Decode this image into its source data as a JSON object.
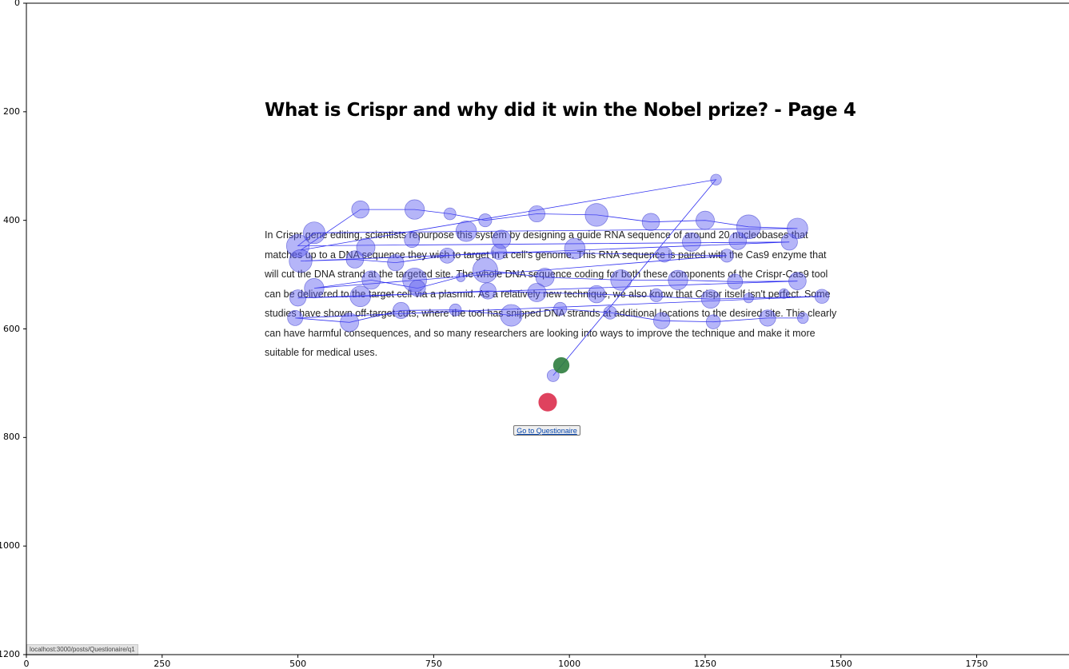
{
  "plot": {
    "x_ticks": [
      0,
      250,
      500,
      750,
      1000,
      1250,
      1500,
      1750
    ],
    "y_ticks": [
      0,
      200,
      400,
      600,
      800,
      1000,
      1200
    ],
    "xlim": [
      0,
      1920
    ],
    "ylim": [
      1200,
      0
    ],
    "colors": {
      "fixation_fill": "rgba(90, 90, 240, 0.45)",
      "fixation_stroke": "#3333cc",
      "saccade_line": "#1a1aee",
      "start_marker": "#2e7d3e",
      "end_marker": "#dc2d4c"
    }
  },
  "page": {
    "title": "What is Crispr and why did it win the Nobel prize? - Page 4",
    "body": "In Crispr gene editing, scientists repurpose this system by designing a guide RNA sequence of around 20 nucleobases that matches up to a DNA sequence they wish to target in a cell's genome. This RNA sequence is paired with the Cas9 enzyme that will cut the DNA strand at the targeted site. The whole DNA sequence coding for both these components of the Crispr-Cas9 tool can be delivered to the target cell via a plasmid. As a relatively new technique, we also know that Crispr itself isn't perfect. Some studies have shown off-target cuts, where the tool has snipped DNA strands at additional locations to the desired site. This clearly can have harmful consequences, and so many researchers are looking into ways to improve the technique and make it more suitable for medical uses.",
    "button_label": "Go to Questionaire"
  },
  "status_bar": {
    "url": "localhost:3000/posts/Questionaire/q1"
  },
  "chart_data": {
    "type": "scatter",
    "title": "",
    "xlabel": "",
    "ylabel": "",
    "xlim": [
      0,
      1920
    ],
    "ylim": [
      1200,
      0
    ],
    "note_units": "screen px",
    "start_point": {
      "x": 985,
      "y": 667,
      "r": 15
    },
    "end_point": {
      "x": 960,
      "y": 735,
      "r": 17
    },
    "fixations": [
      {
        "x": 970,
        "y": 686,
        "r": 11
      },
      {
        "x": 1270,
        "y": 325,
        "r": 10
      },
      {
        "x": 615,
        "y": 380,
        "r": 16
      },
      {
        "x": 715,
        "y": 380,
        "r": 18
      },
      {
        "x": 780,
        "y": 388,
        "r": 11
      },
      {
        "x": 845,
        "y": 400,
        "r": 12
      },
      {
        "x": 940,
        "y": 388,
        "r": 15
      },
      {
        "x": 1050,
        "y": 390,
        "r": 21
      },
      {
        "x": 1150,
        "y": 403,
        "r": 16
      },
      {
        "x": 1250,
        "y": 400,
        "r": 17
      },
      {
        "x": 1330,
        "y": 412,
        "r": 22
      },
      {
        "x": 1420,
        "y": 415,
        "r": 19
      },
      {
        "x": 530,
        "y": 423,
        "r": 20
      },
      {
        "x": 810,
        "y": 420,
        "r": 19
      },
      {
        "x": 500,
        "y": 447,
        "r": 21
      },
      {
        "x": 625,
        "y": 450,
        "r": 17
      },
      {
        "x": 710,
        "y": 436,
        "r": 14
      },
      {
        "x": 875,
        "y": 435,
        "r": 17
      },
      {
        "x": 1010,
        "y": 452,
        "r": 19
      },
      {
        "x": 1225,
        "y": 440,
        "r": 17
      },
      {
        "x": 1310,
        "y": 438,
        "r": 16
      },
      {
        "x": 1405,
        "y": 440,
        "r": 15
      },
      {
        "x": 505,
        "y": 475,
        "r": 21
      },
      {
        "x": 605,
        "y": 472,
        "r": 16
      },
      {
        "x": 680,
        "y": 478,
        "r": 15
      },
      {
        "x": 775,
        "y": 465,
        "r": 14
      },
      {
        "x": 870,
        "y": 458,
        "r": 14
      },
      {
        "x": 1175,
        "y": 463,
        "r": 14
      },
      {
        "x": 1290,
        "y": 465,
        "r": 12
      },
      {
        "x": 530,
        "y": 525,
        "r": 18
      },
      {
        "x": 635,
        "y": 510,
        "r": 17
      },
      {
        "x": 715,
        "y": 510,
        "r": 22
      },
      {
        "x": 720,
        "y": 525,
        "r": 15
      },
      {
        "x": 800,
        "y": 505,
        "r": 8
      },
      {
        "x": 845,
        "y": 492,
        "r": 23
      },
      {
        "x": 955,
        "y": 505,
        "r": 17
      },
      {
        "x": 1095,
        "y": 510,
        "r": 19
      },
      {
        "x": 1200,
        "y": 510,
        "r": 18
      },
      {
        "x": 1305,
        "y": 513,
        "r": 14
      },
      {
        "x": 1420,
        "y": 512,
        "r": 16
      },
      {
        "x": 500,
        "y": 543,
        "r": 15
      },
      {
        "x": 615,
        "y": 540,
        "r": 19
      },
      {
        "x": 850,
        "y": 530,
        "r": 15
      },
      {
        "x": 940,
        "y": 533,
        "r": 17
      },
      {
        "x": 1050,
        "y": 536,
        "r": 16
      },
      {
        "x": 1160,
        "y": 538,
        "r": 12
      },
      {
        "x": 1260,
        "y": 545,
        "r": 17
      },
      {
        "x": 1330,
        "y": 543,
        "r": 9
      },
      {
        "x": 1395,
        "y": 535,
        "r": 9
      },
      {
        "x": 1465,
        "y": 540,
        "r": 13
      },
      {
        "x": 495,
        "y": 580,
        "r": 14
      },
      {
        "x": 595,
        "y": 588,
        "r": 17
      },
      {
        "x": 690,
        "y": 566,
        "r": 15
      },
      {
        "x": 790,
        "y": 565,
        "r": 11
      },
      {
        "x": 893,
        "y": 575,
        "r": 20
      },
      {
        "x": 983,
        "y": 563,
        "r": 12
      },
      {
        "x": 1075,
        "y": 570,
        "r": 12
      },
      {
        "x": 1170,
        "y": 585,
        "r": 15
      },
      {
        "x": 1265,
        "y": 587,
        "r": 13
      },
      {
        "x": 1365,
        "y": 580,
        "r": 15
      },
      {
        "x": 1430,
        "y": 580,
        "r": 10
      }
    ],
    "saccade_path": [
      {
        "x": 970,
        "y": 686
      },
      {
        "x": 1270,
        "y": 325
      },
      {
        "x": 505,
        "y": 455
      },
      {
        "x": 615,
        "y": 380
      },
      {
        "x": 715,
        "y": 380
      },
      {
        "x": 780,
        "y": 388
      },
      {
        "x": 845,
        "y": 400
      },
      {
        "x": 940,
        "y": 388
      },
      {
        "x": 1050,
        "y": 390
      },
      {
        "x": 1150,
        "y": 403
      },
      {
        "x": 1250,
        "y": 400
      },
      {
        "x": 1330,
        "y": 412
      },
      {
        "x": 1420,
        "y": 415
      },
      {
        "x": 530,
        "y": 423
      },
      {
        "x": 500,
        "y": 447
      },
      {
        "x": 1405,
        "y": 440
      },
      {
        "x": 505,
        "y": 475
      },
      {
        "x": 605,
        "y": 472
      },
      {
        "x": 680,
        "y": 478
      },
      {
        "x": 775,
        "y": 465
      },
      {
        "x": 870,
        "y": 458
      },
      {
        "x": 1175,
        "y": 463
      },
      {
        "x": 1290,
        "y": 465
      },
      {
        "x": 530,
        "y": 525
      },
      {
        "x": 635,
        "y": 510
      },
      {
        "x": 720,
        "y": 525
      },
      {
        "x": 845,
        "y": 492
      },
      {
        "x": 955,
        "y": 505
      },
      {
        "x": 1095,
        "y": 510
      },
      {
        "x": 1200,
        "y": 510
      },
      {
        "x": 1305,
        "y": 513
      },
      {
        "x": 1420,
        "y": 512
      },
      {
        "x": 500,
        "y": 543
      },
      {
        "x": 615,
        "y": 540
      },
      {
        "x": 850,
        "y": 530
      },
      {
        "x": 940,
        "y": 533
      },
      {
        "x": 1050,
        "y": 536
      },
      {
        "x": 1260,
        "y": 545
      },
      {
        "x": 1465,
        "y": 540
      },
      {
        "x": 495,
        "y": 580
      },
      {
        "x": 595,
        "y": 588
      },
      {
        "x": 690,
        "y": 566
      },
      {
        "x": 790,
        "y": 565
      },
      {
        "x": 893,
        "y": 575
      },
      {
        "x": 983,
        "y": 563
      },
      {
        "x": 1075,
        "y": 570
      },
      {
        "x": 1170,
        "y": 585
      },
      {
        "x": 1265,
        "y": 587
      },
      {
        "x": 1365,
        "y": 580
      },
      {
        "x": 1430,
        "y": 580
      }
    ]
  }
}
